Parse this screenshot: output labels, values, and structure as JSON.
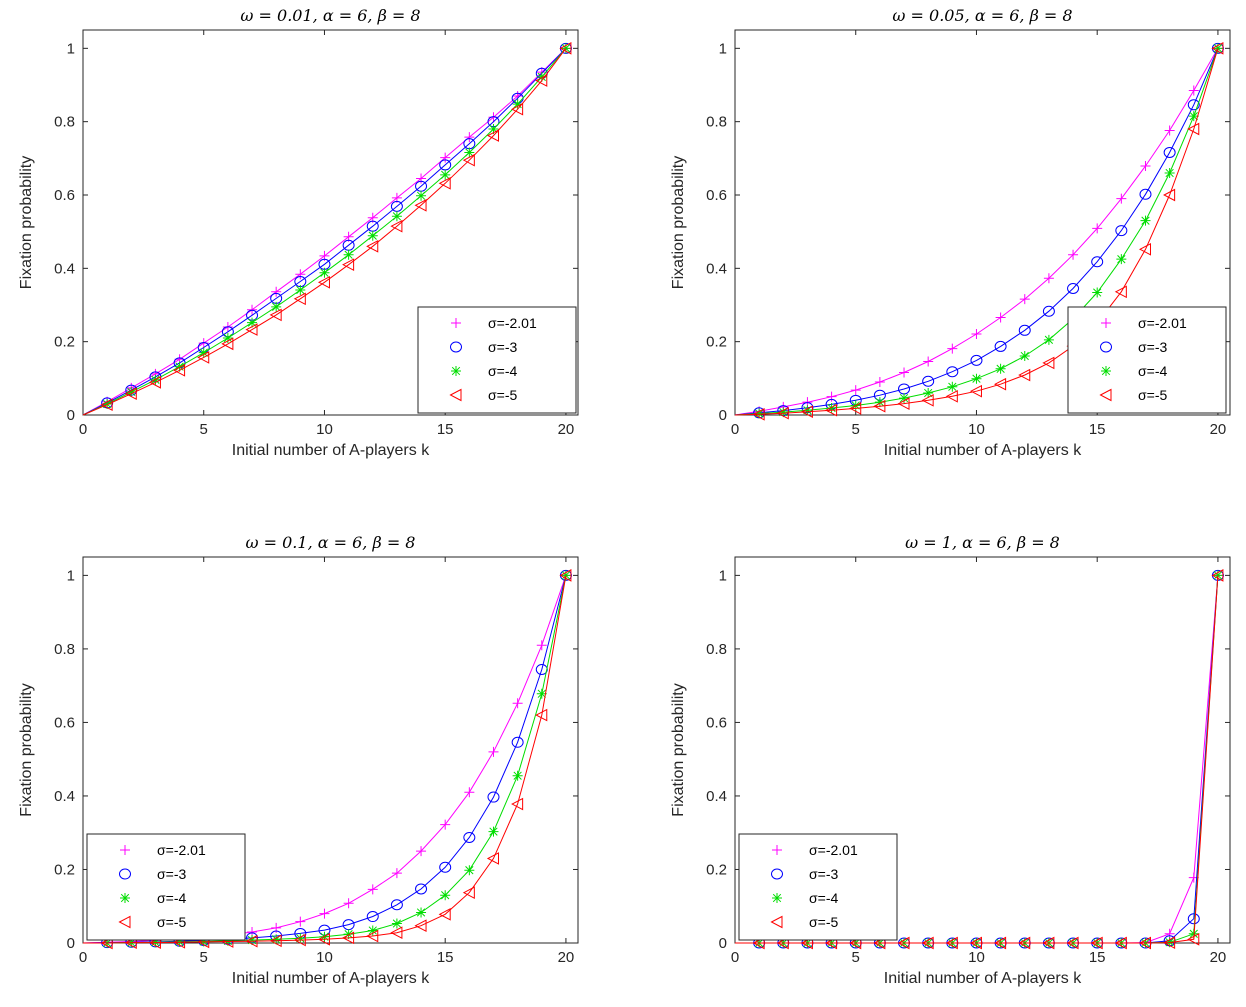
{
  "colors": {
    "s1": "#FF00FF",
    "s2": "#0000FF",
    "s3": "#00DD00",
    "s4": "#FF0000",
    "axis": "#262626"
  },
  "chart_data": [
    {
      "type": "line",
      "title": "ω = 0.01, α = 6, β = 8",
      "xlabel": "Initial number of A-players k",
      "ylabel": "Fixation probability",
      "xlim": [
        0,
        20.5
      ],
      "ylim": [
        0,
        1.05
      ],
      "xticks": [
        0,
        5,
        10,
        15,
        20
      ],
      "yticks": [
        0,
        0.2,
        0.4,
        0.6,
        0.8,
        1
      ],
      "ytick_labels": [
        "0",
        "0.2",
        "0.4",
        "0.6",
        "0.8",
        "1"
      ],
      "legend_position": "lower-right",
      "x": [
        0,
        1,
        2,
        3,
        4,
        5,
        6,
        7,
        8,
        9,
        10,
        11,
        12,
        13,
        14,
        15,
        16,
        17,
        18,
        19,
        20
      ],
      "series": [
        {
          "name": "σ=-2.01",
          "marker": "plus",
          "values": [
            0,
            0.036,
            0.074,
            0.112,
            0.152,
            0.196,
            0.24,
            0.287,
            0.336,
            0.384,
            0.434,
            0.486,
            0.538,
            0.592,
            0.645,
            0.702,
            0.758,
            0.812,
            0.87,
            0.935,
            1
          ]
        },
        {
          "name": "σ=-3",
          "marker": "circle",
          "values": [
            0,
            0.033,
            0.068,
            0.104,
            0.142,
            0.184,
            0.227,
            0.272,
            0.318,
            0.364,
            0.411,
            0.463,
            0.515,
            0.569,
            0.624,
            0.682,
            0.74,
            0.8,
            0.864,
            0.932,
            1
          ]
        },
        {
          "name": "σ=-4",
          "marker": "star",
          "values": [
            0,
            0.03,
            0.063,
            0.096,
            0.132,
            0.17,
            0.21,
            0.252,
            0.295,
            0.341,
            0.388,
            0.437,
            0.489,
            0.542,
            0.598,
            0.655,
            0.716,
            0.78,
            0.848,
            0.922,
            1
          ]
        },
        {
          "name": "σ=-5",
          "marker": "triangle-left",
          "values": [
            0,
            0.028,
            0.058,
            0.089,
            0.122,
            0.157,
            0.194,
            0.233,
            0.273,
            0.317,
            0.362,
            0.41,
            0.46,
            0.515,
            0.572,
            0.632,
            0.695,
            0.762,
            0.834,
            0.912,
            1
          ]
        }
      ]
    },
    {
      "type": "line",
      "title": "ω = 0.05, α = 6, β = 8",
      "xlabel": "Initial number of A-players k",
      "ylabel": "Fixation probability",
      "xlim": [
        0,
        20.5
      ],
      "ylim": [
        0,
        1.05
      ],
      "xticks": [
        0,
        5,
        10,
        15,
        20
      ],
      "yticks": [
        0,
        0.2,
        0.4,
        0.6,
        0.8,
        1
      ],
      "ytick_labels": [
        "0",
        "0.2",
        "0.4",
        "0.6",
        "0.8",
        "1"
      ],
      "legend_position": "lower-right",
      "x": [
        0,
        1,
        2,
        3,
        4,
        5,
        6,
        7,
        8,
        9,
        10,
        11,
        12,
        13,
        14,
        15,
        16,
        17,
        18,
        19,
        20
      ],
      "series": [
        {
          "name": "σ=-2.01",
          "marker": "plus",
          "values": [
            0,
            0.01,
            0.022,
            0.035,
            0.05,
            0.068,
            0.09,
            0.116,
            0.146,
            0.181,
            0.221,
            0.266,
            0.316,
            0.373,
            0.437,
            0.509,
            0.59,
            0.679,
            0.776,
            0.885,
            1
          ]
        },
        {
          "name": "σ=-3",
          "marker": "circle",
          "values": [
            0,
            0.006,
            0.012,
            0.02,
            0.029,
            0.04,
            0.054,
            0.071,
            0.092,
            0.118,
            0.149,
            0.187,
            0.231,
            0.283,
            0.345,
            0.418,
            0.503,
            0.602,
            0.716,
            0.846,
            1
          ]
        },
        {
          "name": "σ=-4",
          "marker": "star",
          "values": [
            0,
            0.004,
            0.008,
            0.013,
            0.019,
            0.026,
            0.035,
            0.046,
            0.06,
            0.077,
            0.099,
            0.126,
            0.161,
            0.205,
            0.262,
            0.334,
            0.425,
            0.53,
            0.66,
            0.815,
            1
          ]
        },
        {
          "name": "σ=-5",
          "marker": "triangle-left",
          "values": [
            0,
            0.002,
            0.005,
            0.009,
            0.013,
            0.018,
            0.024,
            0.031,
            0.04,
            0.051,
            0.065,
            0.084,
            0.109,
            0.142,
            0.188,
            0.251,
            0.336,
            0.452,
            0.6,
            0.78,
            1
          ]
        }
      ]
    },
    {
      "type": "line",
      "title": "ω = 0.1, α = 6, β = 8",
      "xlabel": "Initial number of A-players k",
      "ylabel": "Fixation probability",
      "xlim": [
        0,
        20.5
      ],
      "ylim": [
        0,
        1.05
      ],
      "xticks": [
        0,
        5,
        10,
        15,
        20
      ],
      "yticks": [
        0,
        0.2,
        0.4,
        0.6,
        0.8,
        1
      ],
      "ytick_labels": [
        "0",
        "0.2",
        "0.4",
        "0.6",
        "0.8",
        "1"
      ],
      "legend_position": "lower-left",
      "x": [
        0,
        1,
        2,
        3,
        4,
        5,
        6,
        7,
        8,
        9,
        10,
        11,
        12,
        13,
        14,
        15,
        16,
        17,
        18,
        19,
        20
      ],
      "series": [
        {
          "name": "σ=-2.01",
          "marker": "plus",
          "values": [
            0,
            0.002,
            0.004,
            0.007,
            0.01,
            0.015,
            0.021,
            0.03,
            0.041,
            0.058,
            0.08,
            0.108,
            0.146,
            0.19,
            0.25,
            0.322,
            0.41,
            0.52,
            0.652,
            0.81,
            1
          ]
        },
        {
          "name": "σ=-3",
          "marker": "circle",
          "values": [
            0,
            0.001,
            0.002,
            0.003,
            0.005,
            0.007,
            0.01,
            0.014,
            0.019,
            0.026,
            0.035,
            0.05,
            0.072,
            0.104,
            0.147,
            0.206,
            0.287,
            0.397,
            0.546,
            0.744,
            1
          ]
        },
        {
          "name": "σ=-4",
          "marker": "star",
          "values": [
            0,
            0.0,
            0.001,
            0.002,
            0.003,
            0.004,
            0.006,
            0.008,
            0.01,
            0.013,
            0.017,
            0.024,
            0.034,
            0.053,
            0.083,
            0.13,
            0.198,
            0.303,
            0.455,
            0.678,
            1
          ]
        },
        {
          "name": "σ=-5",
          "marker": "triangle-left",
          "values": [
            0,
            0.0,
            0.001,
            0.001,
            0.002,
            0.003,
            0.004,
            0.005,
            0.006,
            0.008,
            0.01,
            0.014,
            0.019,
            0.028,
            0.047,
            0.078,
            0.137,
            0.23,
            0.378,
            0.62,
            1
          ]
        }
      ]
    },
    {
      "type": "line",
      "title": "ω = 1, α = 6, β = 8",
      "xlabel": "Initial number of A-players k",
      "ylabel": "Fixation probability",
      "xlim": [
        0,
        20.5
      ],
      "ylim": [
        0,
        1.05
      ],
      "xticks": [
        0,
        5,
        10,
        15,
        20
      ],
      "yticks": [
        0,
        0.2,
        0.4,
        0.6,
        0.8,
        1
      ],
      "ytick_labels": [
        "0",
        "0.2",
        "0.4",
        "0.6",
        "0.8",
        "1"
      ],
      "legend_position": "lower-left",
      "x": [
        0,
        1,
        2,
        3,
        4,
        5,
        6,
        7,
        8,
        9,
        10,
        11,
        12,
        13,
        14,
        15,
        16,
        17,
        18,
        19,
        20
      ],
      "series": [
        {
          "name": "σ=-2.01",
          "marker": "plus",
          "values": [
            0,
            0,
            0,
            0,
            0,
            0,
            0,
            0,
            0,
            0,
            0,
            0,
            0,
            0,
            0,
            0,
            0,
            0.001,
            0.025,
            0.178,
            1
          ]
        },
        {
          "name": "σ=-3",
          "marker": "circle",
          "values": [
            0,
            0,
            0,
            0,
            0,
            0,
            0,
            0,
            0,
            0,
            0,
            0,
            0,
            0,
            0,
            0,
            0,
            0.0,
            0.006,
            0.066,
            1
          ]
        },
        {
          "name": "σ=-4",
          "marker": "star",
          "values": [
            0,
            0,
            0,
            0,
            0,
            0,
            0,
            0,
            0,
            0,
            0,
            0,
            0,
            0,
            0,
            0,
            0,
            0.0,
            0.002,
            0.025,
            1
          ]
        },
        {
          "name": "σ=-5",
          "marker": "triangle-left",
          "values": [
            0,
            0,
            0,
            0,
            0,
            0,
            0,
            0,
            0,
            0,
            0,
            0,
            0,
            0,
            0,
            0,
            0,
            0.0,
            0.001,
            0.01,
            1
          ]
        }
      ]
    }
  ]
}
